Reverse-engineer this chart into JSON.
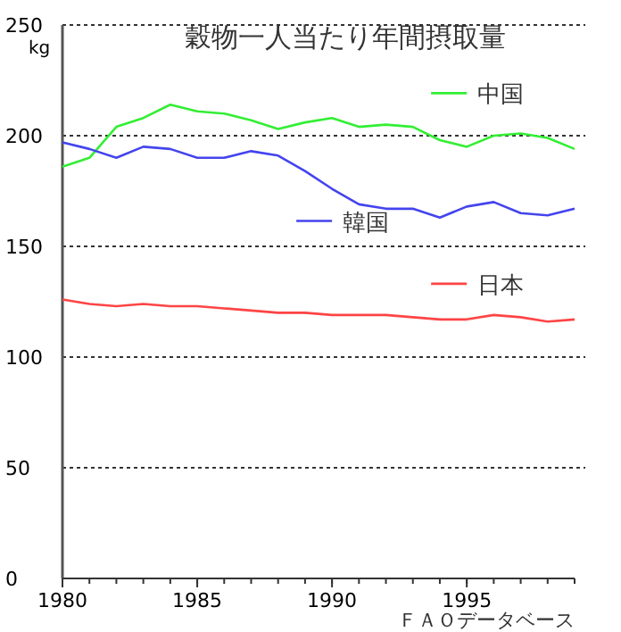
{
  "chart_data": {
    "type": "line",
    "title": "穀物一人当たり年間摂取量",
    "ylabel": "kg",
    "annotations": [
      "ＦＡＯデータベース"
    ],
    "x": [
      1980,
      1981,
      1982,
      1983,
      1984,
      1985,
      1986,
      1987,
      1988,
      1989,
      1990,
      1991,
      1992,
      1993,
      1994,
      1995,
      1996,
      1997,
      1998,
      1999
    ],
    "series": [
      {
        "name": "中国",
        "color": "#33ee33",
        "values": [
          186,
          190,
          204,
          208,
          214,
          211,
          210,
          207,
          203,
          206,
          208,
          204,
          205,
          204,
          198,
          195,
          200,
          201,
          199,
          194
        ]
      },
      {
        "name": "韓国",
        "color": "#4444ee",
        "values": [
          197,
          194,
          190,
          195,
          194,
          190,
          190,
          193,
          191,
          184,
          176,
          169,
          167,
          167,
          163,
          168,
          170,
          165,
          164,
          167
        ]
      },
      {
        "name": "日本",
        "color": "#ff4444",
        "values": [
          126,
          124,
          123,
          124,
          123,
          123,
          122,
          121,
          120,
          120,
          119,
          119,
          119,
          118,
          117,
          117,
          119,
          118,
          116,
          117
        ]
      }
    ],
    "xlim": [
      1980,
      1999
    ],
    "xticks": [
      1980,
      1985,
      1990,
      1995
    ],
    "ylim": [
      0,
      250
    ],
    "yticks": [
      0,
      50,
      100,
      150,
      200,
      250
    ],
    "grid": "y",
    "legend": "right"
  }
}
